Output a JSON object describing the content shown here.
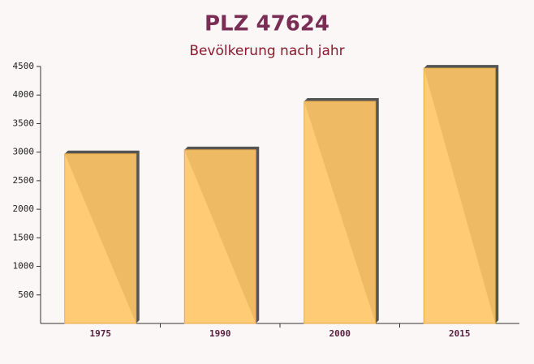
{
  "chart_data": {
    "type": "bar",
    "title": "PLZ 47624",
    "subtitle": "Bevölkerung nach jahr",
    "categories": [
      "1975",
      "1990",
      "2000",
      "2015"
    ],
    "values": [
      2970,
      3040,
      3890,
      4470
    ],
    "color": "#ffc666",
    "ylim": [
      0,
      4500
    ],
    "yticks": [
      500,
      1000,
      1500,
      2000,
      2500,
      3000,
      3500,
      4000,
      4500
    ]
  }
}
